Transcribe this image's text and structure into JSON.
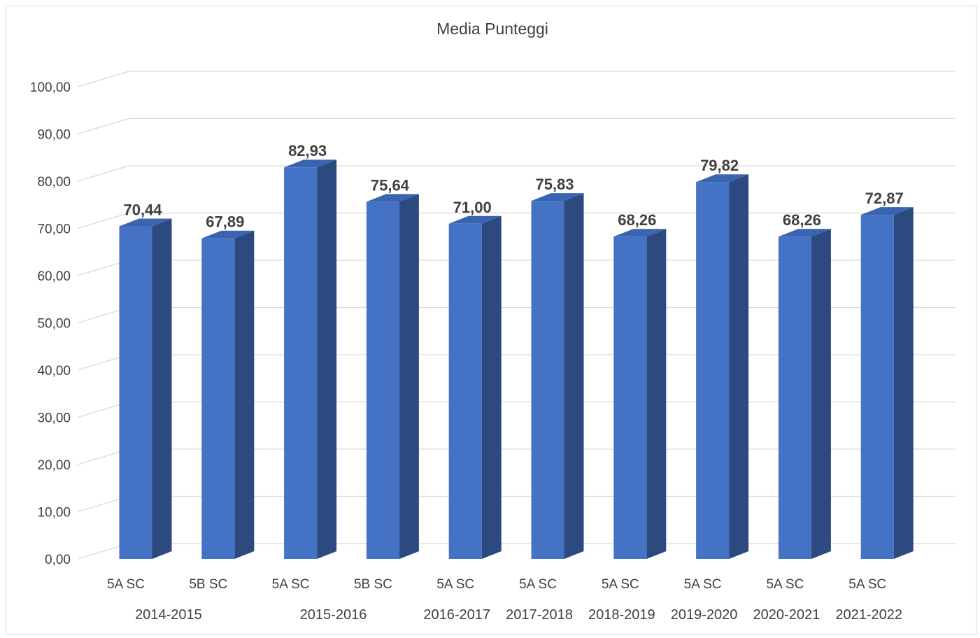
{
  "chart_data": {
    "type": "bar",
    "title": "Media Punteggi",
    "categories": [
      "5A SC",
      "5B SC",
      "5A SC",
      "5B SC",
      "5A SC",
      "5A SC",
      "5A SC",
      "5A SC",
      "5A SC",
      "5A SC"
    ],
    "groups": [
      {
        "label": "2014-2015",
        "span": 2
      },
      {
        "label": "2015-2016",
        "span": 2
      },
      {
        "label": "2016-2017",
        "span": 1
      },
      {
        "label": "2017-2018",
        "span": 1
      },
      {
        "label": "2018-2019",
        "span": 1
      },
      {
        "label": "2019-2020",
        "span": 1
      },
      {
        "label": "2020-2021",
        "span": 1
      },
      {
        "label": "2021-2022",
        "span": 1
      }
    ],
    "values": [
      70.44,
      67.89,
      82.93,
      75.64,
      71.0,
      75.83,
      68.26,
      79.82,
      68.26,
      72.87
    ],
    "data_labels": [
      "70,44",
      "67,89",
      "82,93",
      "75,64",
      "71,00",
      "75,83",
      "68,26",
      "79,82",
      "68,26",
      "72,87"
    ],
    "yticks": [
      "0,00",
      "10,00",
      "20,00",
      "30,00",
      "40,00",
      "50,00",
      "60,00",
      "70,00",
      "80,00",
      "90,00",
      "100,00"
    ],
    "ylim": [
      0,
      100
    ],
    "ytick_step": 10,
    "grid": true,
    "legend": "none",
    "style_3d": true,
    "colors": {
      "bar_front": "#4472C4",
      "bar_side": "#2C4A80",
      "bar_top": "#3A64B0"
    }
  }
}
